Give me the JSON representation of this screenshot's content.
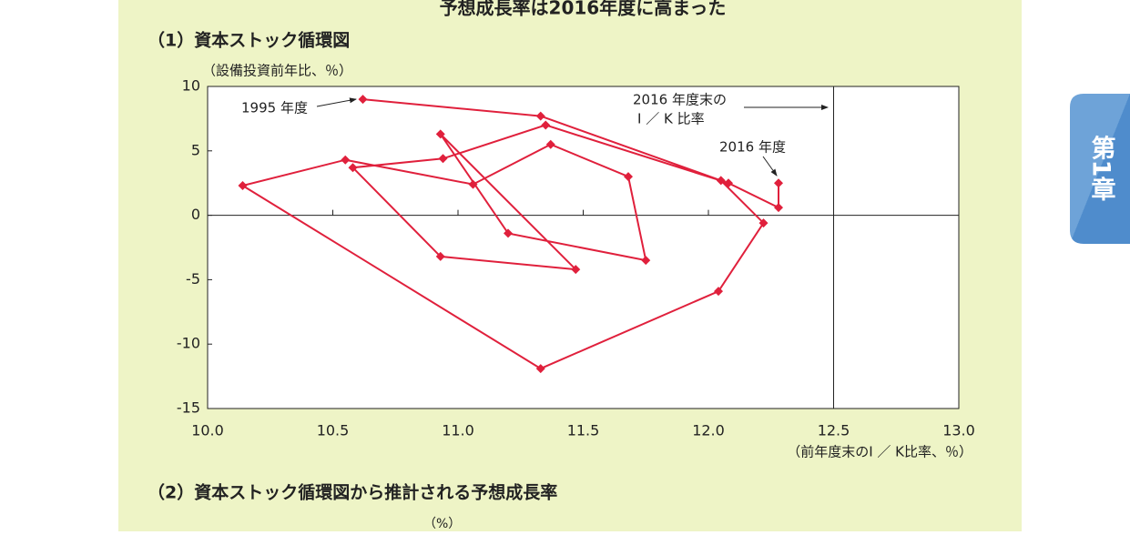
{
  "page": {
    "heading": "予想成長率は2016年度に高まった",
    "section1": "（1）資本ストック循環図",
    "section2": "（2）資本ストック循環図から推計される予想成長率",
    "unit2": "（%）",
    "tab": "第1章"
  },
  "chart_data": {
    "type": "scatter-line",
    "y_label": "（設備投資前年比、％）",
    "x_label": "（前年度末のI ／ K比率、％）",
    "x": [
      10.62,
      11.33,
      12.05,
      12.22,
      12.04,
      11.33,
      10.14,
      10.55,
      11.06,
      11.37,
      11.68,
      11.75,
      11.2,
      10.93,
      11.47,
      10.93,
      10.58,
      10.94,
      11.35,
      12.08,
      12.28,
      12.28
    ],
    "y": [
      9.0,
      7.7,
      2.7,
      -0.6,
      -5.9,
      -11.9,
      2.3,
      4.3,
      2.4,
      5.5,
      3.0,
      -3.5,
      -1.4,
      6.3,
      -4.2,
      -3.2,
      3.7,
      4.4,
      7.0,
      2.5,
      0.6,
      2.5
    ],
    "color": "#e0203c",
    "xlim": [
      10,
      13
    ],
    "xticks": [
      {
        "value": 10,
        "label": "10.0"
      },
      {
        "value": 10.5,
        "label": "10.5"
      },
      {
        "value": 11,
        "label": "11.0"
      },
      {
        "value": 11.5,
        "label": "11.5"
      },
      {
        "value": 12,
        "label": "12.0"
      },
      {
        "value": 12.5,
        "label": "12.5"
      },
      {
        "value": 13,
        "label": "13.0"
      }
    ],
    "ylim": [
      -15,
      10
    ],
    "yticks": [
      10,
      5,
      0,
      -5,
      -10,
      -15
    ],
    "vline": 12.5,
    "annotations": [
      "1995 年度",
      "2016 年度末の",
      "I ／ K 比率",
      "2016 年度"
    ]
  }
}
